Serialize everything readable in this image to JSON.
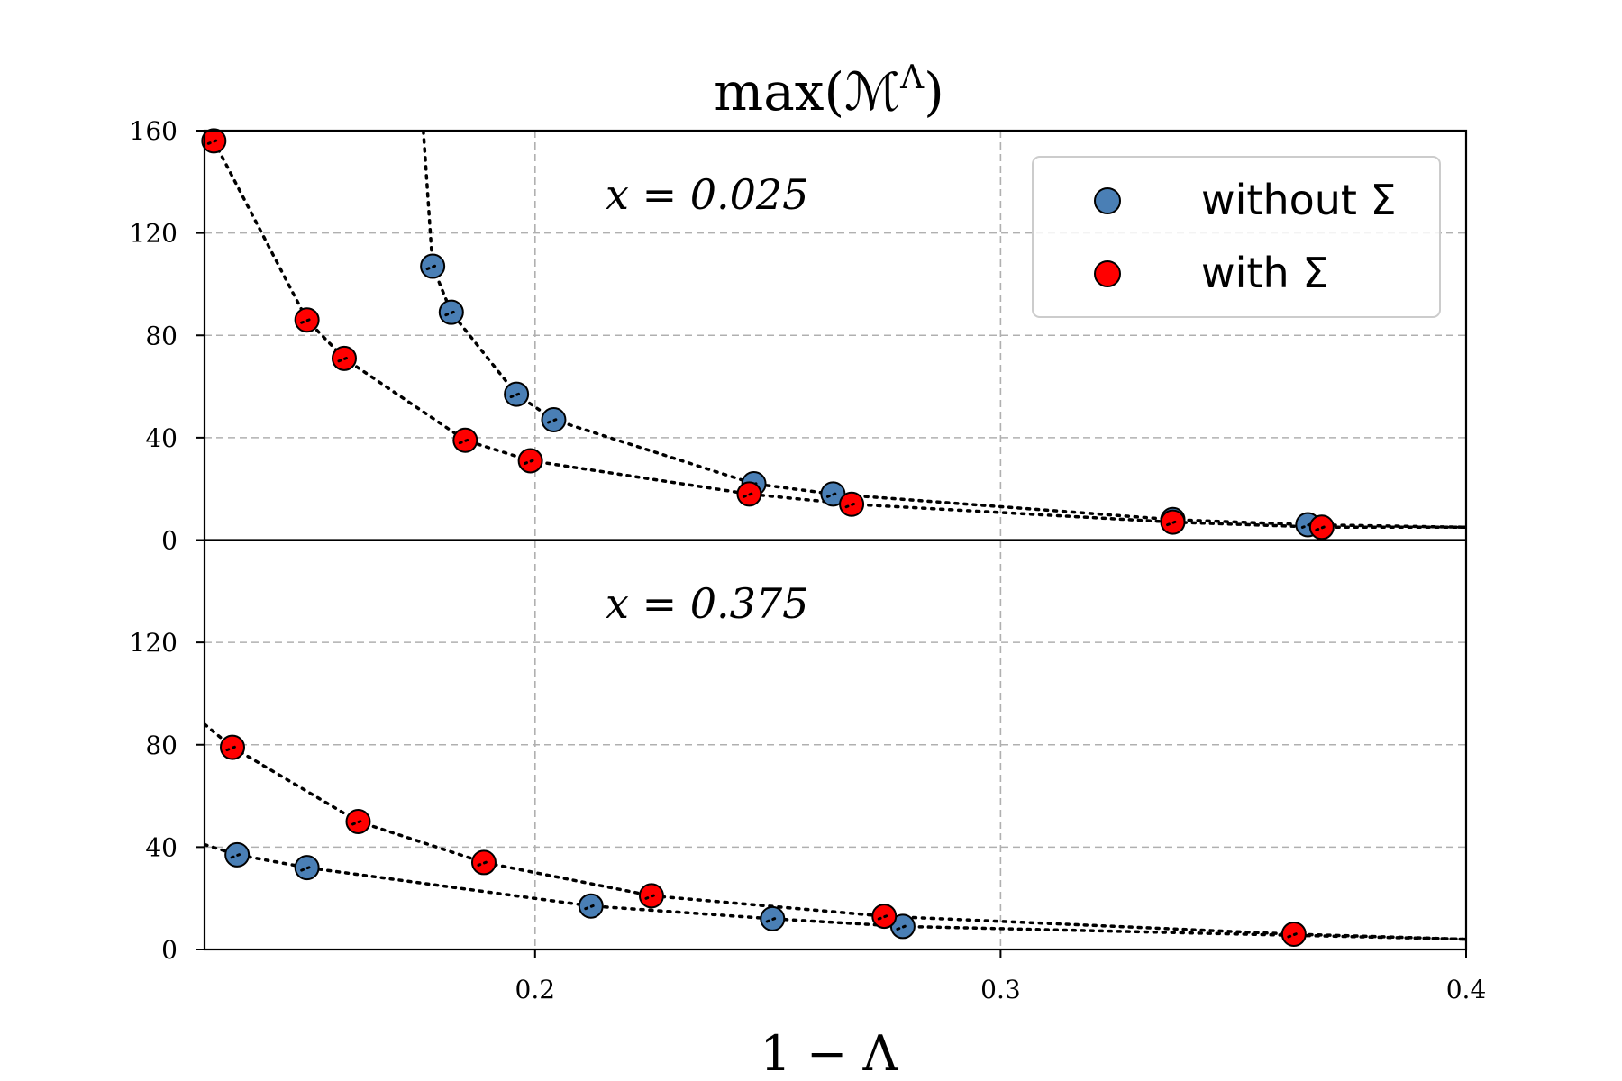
{
  "chart_data": {
    "type": "scatter",
    "title": "max(ℳ",
    "title_superscript": "Λ",
    "title_close": ")",
    "xlabel": "1 − Λ",
    "xlim": [
      0.129,
      0.4
    ],
    "x_ticks": [
      0.2,
      0.3,
      0.4
    ],
    "x_tick_labels": [
      "0.2",
      "0.3",
      "0.4"
    ],
    "grid": true,
    "legend": {
      "position": "top-right of upper panel",
      "entries": [
        {
          "label": "without Σ",
          "color": "#4a7fb5"
        },
        {
          "label": "with Σ",
          "color": "#ff0000"
        }
      ]
    },
    "panels": [
      {
        "annotation": "x = 0.025",
        "ylim": [
          0,
          160
        ],
        "y_ticks": [
          0,
          40,
          80,
          120,
          160
        ],
        "y_tick_labels": [
          "0",
          "40",
          "80",
          "120",
          "160"
        ],
        "series": [
          {
            "name": "without Σ",
            "color": "#4a7fb5",
            "points": [
              [
                0.178,
                107
              ],
              [
                0.182,
                89
              ],
              [
                0.196,
                57
              ],
              [
                0.204,
                47
              ],
              [
                0.247,
                22
              ],
              [
                0.264,
                18
              ],
              [
                0.337,
                8
              ],
              [
                0.366,
                6
              ]
            ],
            "fit": [
              [
                0.176,
                160
              ],
              [
                0.178,
                107
              ],
              [
                0.182,
                89
              ],
              [
                0.196,
                57
              ],
              [
                0.204,
                47
              ],
              [
                0.247,
                22
              ],
              [
                0.264,
                18
              ],
              [
                0.337,
                8
              ],
              [
                0.366,
                6
              ],
              [
                0.4,
                5
              ]
            ]
          },
          {
            "name": "with Σ",
            "color": "#ff0000",
            "points": [
              [
                0.131,
                156
              ],
              [
                0.151,
                86
              ],
              [
                0.159,
                71
              ],
              [
                0.185,
                39
              ],
              [
                0.199,
                31
              ],
              [
                0.246,
                18
              ],
              [
                0.268,
                14
              ],
              [
                0.337,
                7
              ],
              [
                0.369,
                5
              ]
            ],
            "fit": [
              [
                0.131,
                156
              ],
              [
                0.151,
                86
              ],
              [
                0.159,
                71
              ],
              [
                0.185,
                39
              ],
              [
                0.199,
                31
              ],
              [
                0.246,
                18
              ],
              [
                0.268,
                14
              ],
              [
                0.337,
                7
              ],
              [
                0.369,
                5
              ],
              [
                0.4,
                5
              ]
            ]
          }
        ]
      },
      {
        "annotation": "x = 0.375",
        "ylim": [
          0,
          160
        ],
        "y_ticks": [
          0,
          40,
          80,
          120
        ],
        "y_tick_labels": [
          "0",
          "40",
          "80",
          "120"
        ],
        "series": [
          {
            "name": "without Σ",
            "color": "#4a7fb5",
            "points": [
              [
                0.136,
                37
              ],
              [
                0.151,
                32
              ],
              [
                0.212,
                17
              ],
              [
                0.251,
                12
              ],
              [
                0.279,
                9
              ]
            ],
            "fit": [
              [
                0.129,
                41
              ],
              [
                0.136,
                37
              ],
              [
                0.151,
                32
              ],
              [
                0.212,
                17
              ],
              [
                0.251,
                12
              ],
              [
                0.279,
                9
              ],
              [
                0.4,
                4
              ]
            ]
          },
          {
            "name": "with Σ",
            "color": "#ff0000",
            "points": [
              [
                0.135,
                79
              ],
              [
                0.162,
                50
              ],
              [
                0.189,
                34
              ],
              [
                0.225,
                21
              ],
              [
                0.275,
                13
              ],
              [
                0.363,
                6
              ]
            ],
            "fit": [
              [
                0.129,
                88
              ],
              [
                0.135,
                79
              ],
              [
                0.162,
                50
              ],
              [
                0.189,
                34
              ],
              [
                0.225,
                21
              ],
              [
                0.275,
                13
              ],
              [
                0.363,
                6
              ],
              [
                0.4,
                4
              ]
            ]
          }
        ]
      }
    ]
  }
}
